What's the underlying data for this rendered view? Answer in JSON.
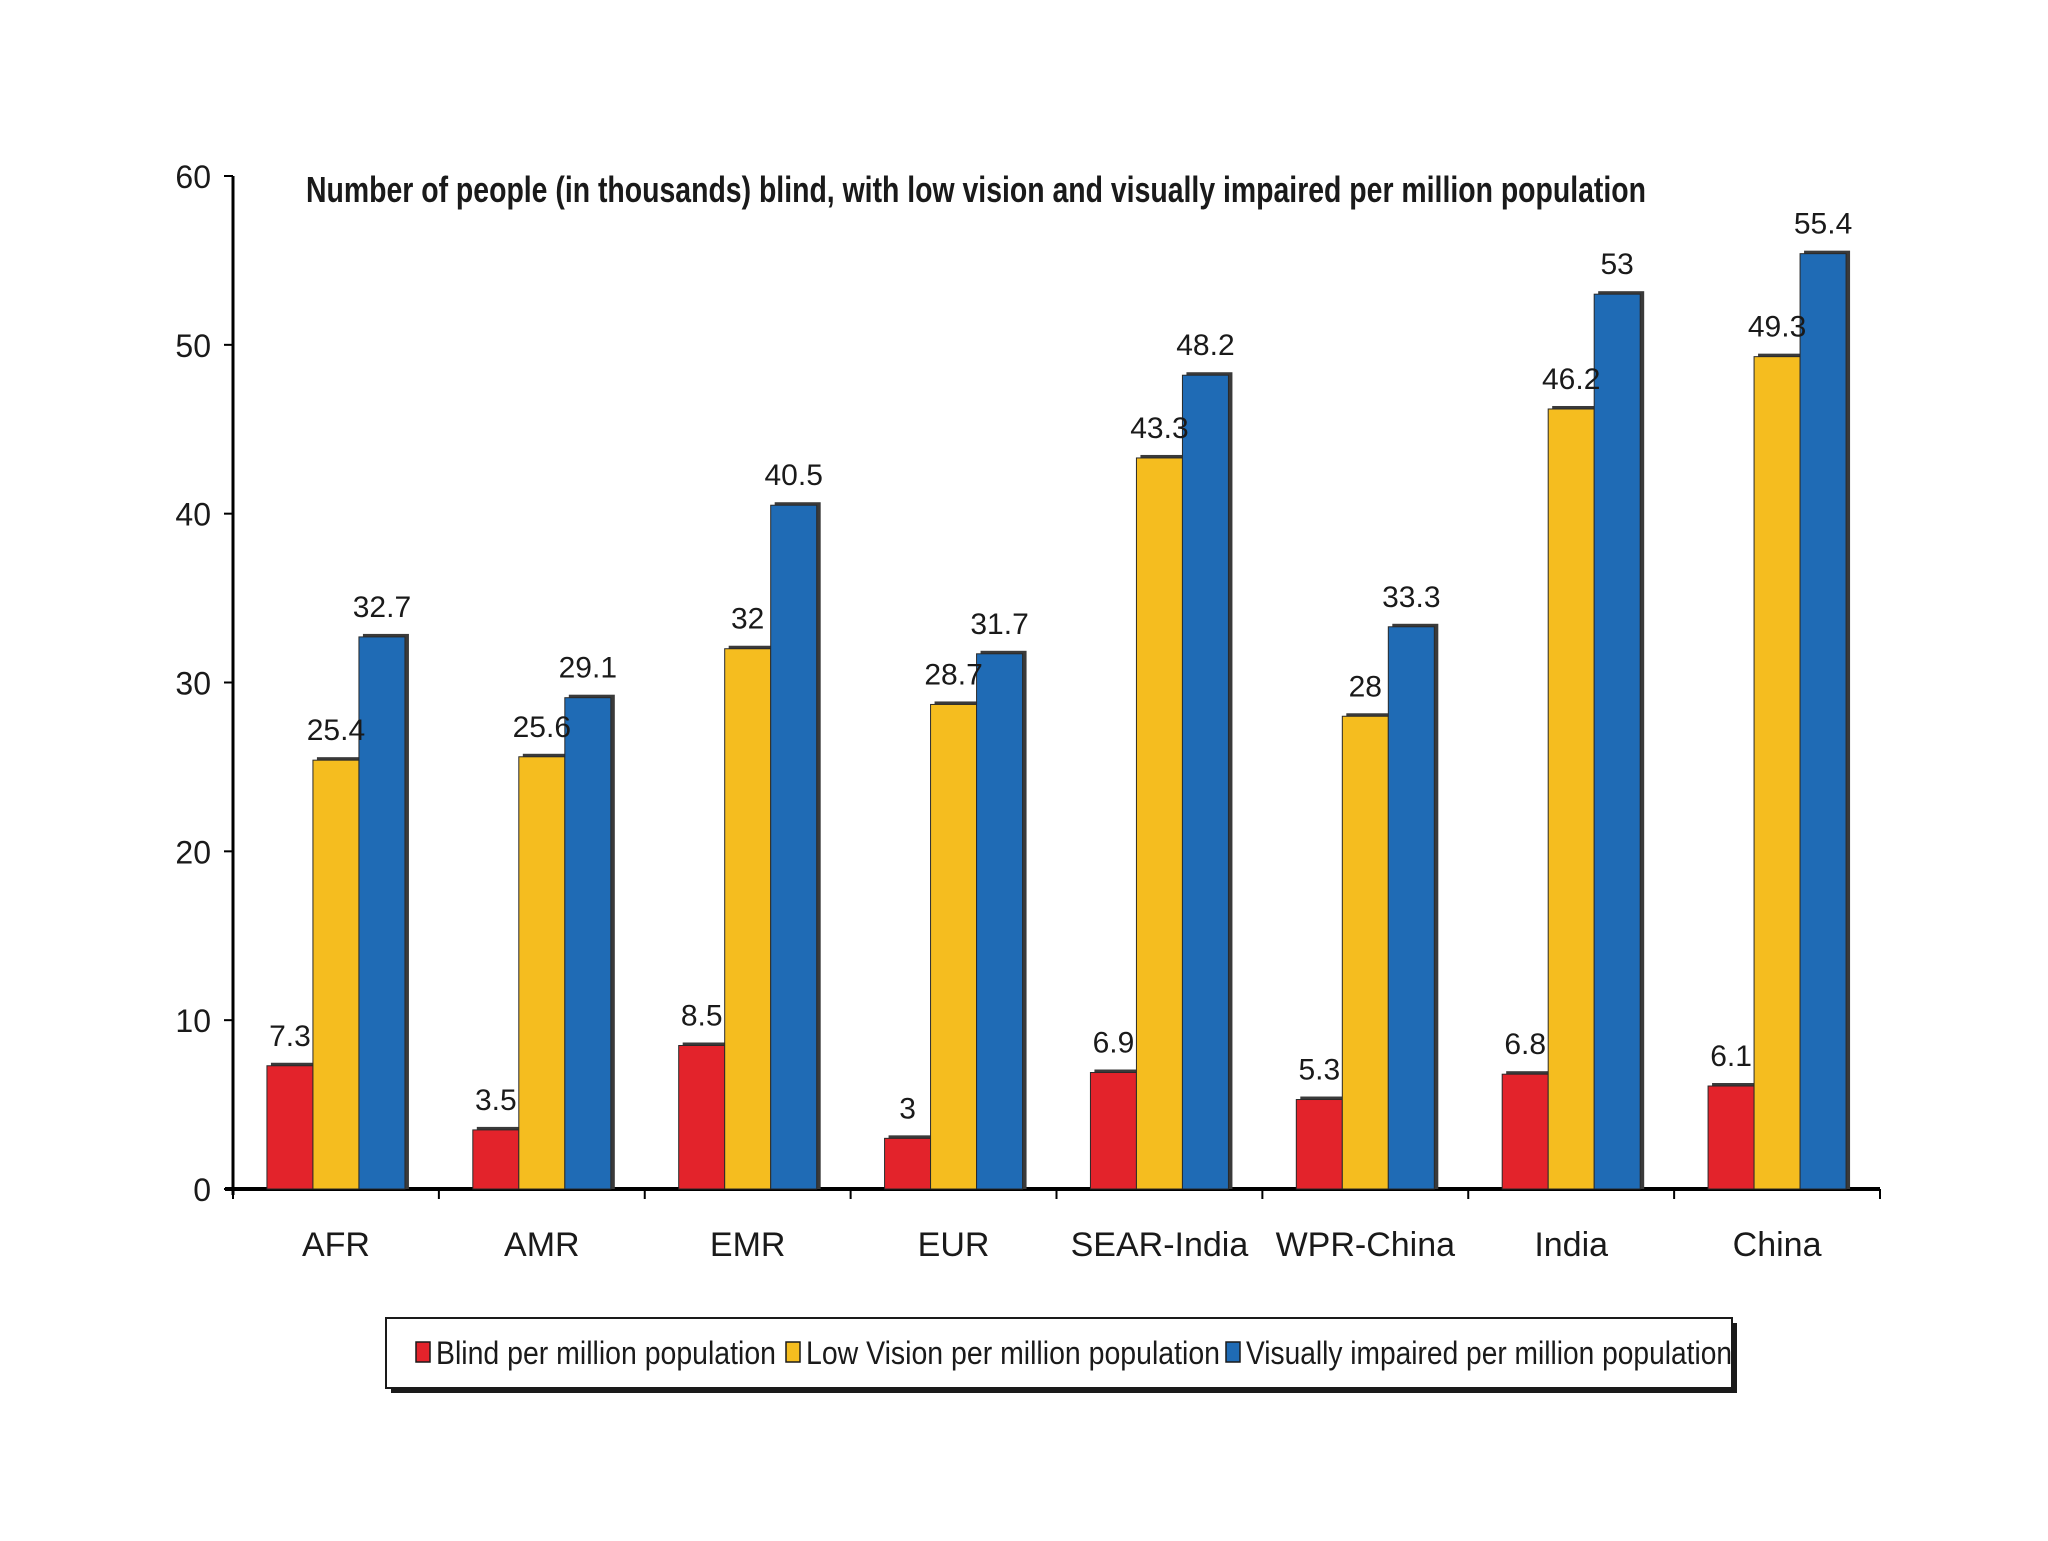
{
  "chart_data": {
    "type": "bar",
    "title": "Number of people (in thousands)  blind, with low vision and visually impaired per million population",
    "categories": [
      "AFR",
      "AMR",
      "EMR",
      "EUR",
      "SEAR-India",
      "WPR-China",
      "India",
      "China"
    ],
    "series": [
      {
        "name": "Blind per million population",
        "color": "#e3232b",
        "values": [
          7.3,
          3.5,
          8.5,
          3,
          6.9,
          5.3,
          6.8,
          6.1
        ],
        "labels": [
          "7.3",
          "3.5",
          "8.5",
          "3",
          "6.9",
          "5.3",
          "6.8",
          "6.1"
        ]
      },
      {
        "name": "Low Vision per million population",
        "color": "#f5bd1f",
        "values": [
          25.4,
          25.6,
          32,
          28.7,
          43.3,
          28,
          46.2,
          49.3
        ],
        "labels": [
          "25.4",
          "25.6",
          "32",
          "28.7",
          "43.3",
          "28",
          "46.2",
          "49.3"
        ]
      },
      {
        "name": "Visually impaired per million population",
        "color": "#1f6bb5",
        "values": [
          32.7,
          29.1,
          40.5,
          31.7,
          48.2,
          33.3,
          53,
          55.4
        ],
        "labels": [
          "32.7",
          "29.1",
          "40.5",
          "31.7",
          "48.2",
          "33.3",
          "53",
          "55.4"
        ]
      }
    ],
    "ylim": [
      0,
      60
    ],
    "yticks": [
      "0",
      "10",
      "20",
      "30",
      "40",
      "50",
      "60"
    ],
    "xlabel": "",
    "ylabel": "",
    "legend_position": "bottom",
    "grid": false
  }
}
